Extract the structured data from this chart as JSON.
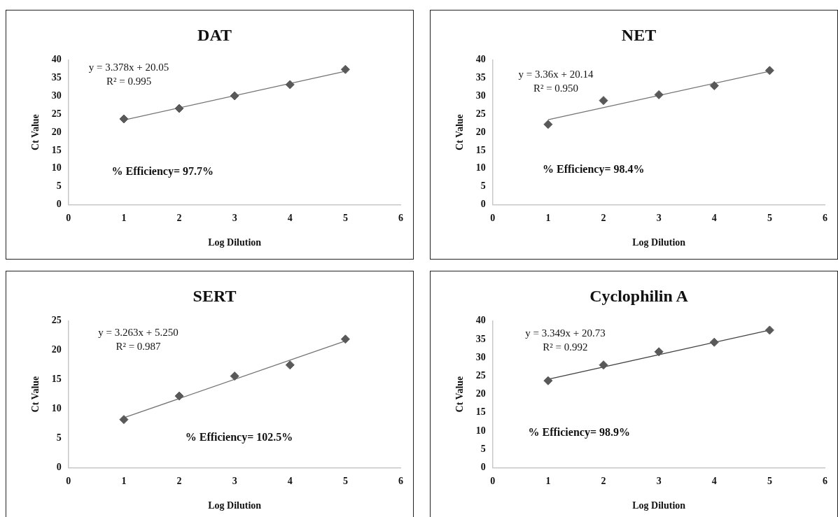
{
  "chart_data": [
    {
      "type": "scatter",
      "title": "DAT",
      "xlabel": "Log Dilution",
      "ylabel": "Ct Value",
      "marker": "diamond",
      "legend": false,
      "xlim": [
        0,
        6
      ],
      "xticks": [
        0,
        1,
        2,
        3,
        4,
        5,
        6
      ],
      "ylim": [
        0,
        40
      ],
      "yticks": [
        0,
        5,
        10,
        15,
        20,
        25,
        30,
        35,
        40
      ],
      "annotations": [
        "y = 3.378x + 20.05",
        "R² = 0.995",
        "% Efficiency= 97.7%"
      ],
      "series": [
        {
          "type": "scatter",
          "color": "#595959",
          "x": [
            1,
            2,
            3,
            4,
            5
          ],
          "values": [
            23.7,
            26.6,
            30.1,
            33.2,
            37.4
          ]
        },
        {
          "type": "line",
          "color": "#737373",
          "marker": "none",
          "x": [
            1,
            5
          ],
          "values": [
            23.4,
            36.9
          ]
        }
      ]
    },
    {
      "type": "scatter",
      "title": "NET",
      "xlabel": "Log Dilution",
      "ylabel": "Ct Value",
      "marker": "diamond",
      "legend": false,
      "xlim": [
        0,
        6
      ],
      "xticks": [
        0,
        1,
        2,
        3,
        4,
        5,
        6
      ],
      "ylim": [
        0,
        40
      ],
      "yticks": [
        0,
        5,
        10,
        15,
        20,
        25,
        30,
        35,
        40
      ],
      "annotations": [
        "y = 3.36x + 20.14",
        "R² = 0.950",
        "% Efficiency= 98.4%"
      ],
      "series": [
        {
          "type": "scatter",
          "color": "#595959",
          "x": [
            1,
            2,
            3,
            4,
            5
          ],
          "values": [
            22.2,
            28.8,
            30.4,
            32.9,
            37.1
          ]
        },
        {
          "type": "line",
          "color": "#737373",
          "marker": "none",
          "x": [
            1,
            5
          ],
          "values": [
            23.5,
            36.9
          ]
        }
      ]
    },
    {
      "type": "scatter",
      "title": "SERT",
      "xlabel": "Log Dilution",
      "ylabel": "Ct Value",
      "marker": "diamond",
      "legend": false,
      "xlim": [
        0,
        6
      ],
      "xticks": [
        0,
        1,
        2,
        3,
        4,
        5,
        6
      ],
      "ylim": [
        0,
        25
      ],
      "yticks": [
        0,
        5,
        10,
        15,
        20,
        25
      ],
      "annotations": [
        "y = 3.263x + 5.250",
        "R² = 0.987",
        "% Efficiency= 102.5%"
      ],
      "series": [
        {
          "type": "scatter",
          "color": "#595959",
          "x": [
            1,
            2,
            3,
            4,
            5
          ],
          "values": [
            8.2,
            12.2,
            15.6,
            17.5,
            21.9
          ]
        },
        {
          "type": "line",
          "color": "#737373",
          "marker": "none",
          "x": [
            1,
            5
          ],
          "values": [
            8.5,
            21.6
          ]
        }
      ]
    },
    {
      "type": "scatter",
      "title": "Cyclophilin A",
      "xlabel": "Log Dilution",
      "ylabel": "Ct Value",
      "marker": "diamond",
      "legend": false,
      "xlim": [
        0,
        6
      ],
      "xticks": [
        0,
        1,
        2,
        3,
        4,
        5,
        6
      ],
      "ylim": [
        0,
        40
      ],
      "yticks": [
        0,
        5,
        10,
        15,
        20,
        25,
        30,
        35,
        40
      ],
      "annotations": [
        "y = 3.349x + 20.73",
        "R² = 0.992",
        "% Efficiency= 98.9%"
      ],
      "series": [
        {
          "type": "scatter",
          "color": "#595959",
          "x": [
            1,
            2,
            3,
            4,
            5
          ],
          "values": [
            23.7,
            28.0,
            31.6,
            34.2,
            37.5
          ]
        },
        {
          "type": "line",
          "color": "#404040",
          "marker": "none",
          "x": [
            1,
            5
          ],
          "values": [
            24.1,
            37.5
          ]
        }
      ]
    }
  ]
}
